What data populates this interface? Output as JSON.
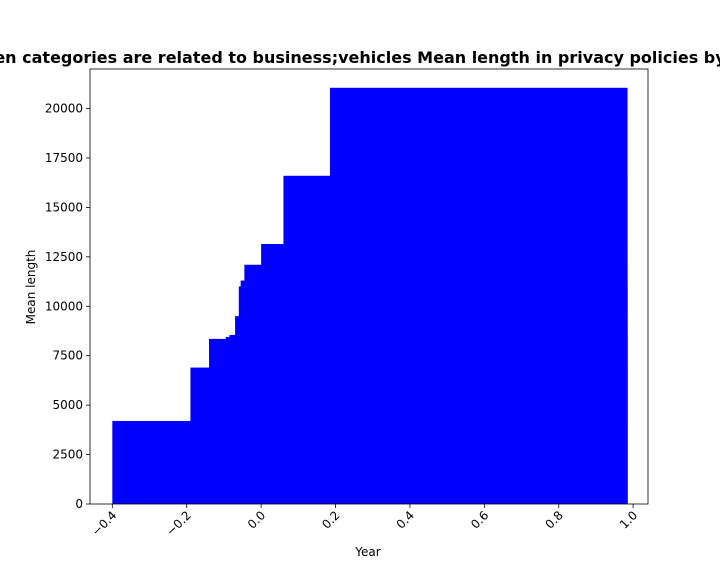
{
  "chart_data": {
    "type": "bar",
    "title": "en categories are related to business;vehicles Mean length in privacy policies by",
    "xlabel": "Year",
    "ylabel": "Mean length",
    "xlim": [
      -0.46,
      1.04
    ],
    "ylim": [
      0,
      22000
    ],
    "grid": false,
    "color": "#0000ff",
    "xticks": [
      -0.4,
      -0.2,
      0.0,
      0.2,
      0.4,
      0.6,
      0.8,
      1.0
    ],
    "xtick_labels": [
      "−0.4",
      "−0.2",
      "0.0",
      "0.2",
      "0.4",
      "0.6",
      "0.8",
      "1.0"
    ],
    "yticks": [
      0,
      2500,
      5000,
      7500,
      10000,
      12500,
      15000,
      17500,
      20000
    ],
    "ytick_labels": [
      "0",
      "2500",
      "5000",
      "7500",
      "10000",
      "12500",
      "15000",
      "17500",
      "20000"
    ],
    "bars": [
      {
        "x0": -0.4,
        "x1": 0.985,
        "value": 4200
      },
      {
        "x0": -0.19,
        "x1": 0.985,
        "value": 6900
      },
      {
        "x0": -0.14,
        "x1": 0.985,
        "value": 8350
      },
      {
        "x0": -0.095,
        "x1": 0.985,
        "value": 8450
      },
      {
        "x0": -0.085,
        "x1": 0.985,
        "value": 8550
      },
      {
        "x0": -0.07,
        "x1": 0.985,
        "value": 9500
      },
      {
        "x0": -0.06,
        "x1": 0.985,
        "value": 11000
      },
      {
        "x0": -0.055,
        "x1": 0.985,
        "value": 11300
      },
      {
        "x0": -0.045,
        "x1": 0.985,
        "value": 12100
      },
      {
        "x0": 0.0,
        "x1": 0.985,
        "value": 13150
      },
      {
        "x0": 0.06,
        "x1": 0.985,
        "value": 16600
      },
      {
        "x0": 0.185,
        "x1": 0.985,
        "value": 21050
      }
    ]
  }
}
